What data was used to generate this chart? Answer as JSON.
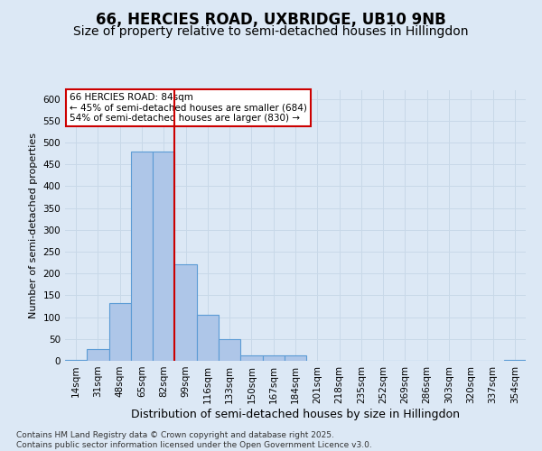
{
  "title1": "66, HERCIES ROAD, UXBRIDGE, UB10 9NB",
  "title2": "Size of property relative to semi-detached houses in Hillingdon",
  "xlabel": "Distribution of semi-detached houses by size in Hillingdon",
  "ylabel": "Number of semi-detached properties",
  "categories": [
    "14sqm",
    "31sqm",
    "48sqm",
    "65sqm",
    "82sqm",
    "99sqm",
    "116sqm",
    "133sqm",
    "150sqm",
    "167sqm",
    "184sqm",
    "201sqm",
    "218sqm",
    "235sqm",
    "252sqm",
    "269sqm",
    "286sqm",
    "303sqm",
    "320sqm",
    "337sqm",
    "354sqm"
  ],
  "values": [
    2,
    27,
    133,
    480,
    480,
    222,
    105,
    50,
    13,
    12,
    12,
    0,
    0,
    0,
    0,
    0,
    0,
    0,
    0,
    0,
    2
  ],
  "bar_color": "#aec6e8",
  "bar_edge_color": "#5b9bd5",
  "grid_color": "#c8d8e8",
  "background_color": "#dce8f5",
  "annotation_box_color": "#ffffff",
  "annotation_border_color": "#cc0000",
  "property_line_color": "#cc0000",
  "property_line_bin": 4,
  "annotation_text": "66 HERCIES ROAD: 84sqm\n← 45% of semi-detached houses are smaller (684)\n54% of semi-detached houses are larger (830) →",
  "ylim": [
    0,
    620
  ],
  "yticks": [
    0,
    50,
    100,
    150,
    200,
    250,
    300,
    350,
    400,
    450,
    500,
    550,
    600
  ],
  "footer_text": "Contains HM Land Registry data © Crown copyright and database right 2025.\nContains public sector information licensed under the Open Government Licence v3.0.",
  "title1_fontsize": 12,
  "title2_fontsize": 10,
  "xlabel_fontsize": 9,
  "ylabel_fontsize": 8,
  "tick_fontsize": 7.5,
  "annotation_fontsize": 7.5,
  "footer_fontsize": 6.5
}
